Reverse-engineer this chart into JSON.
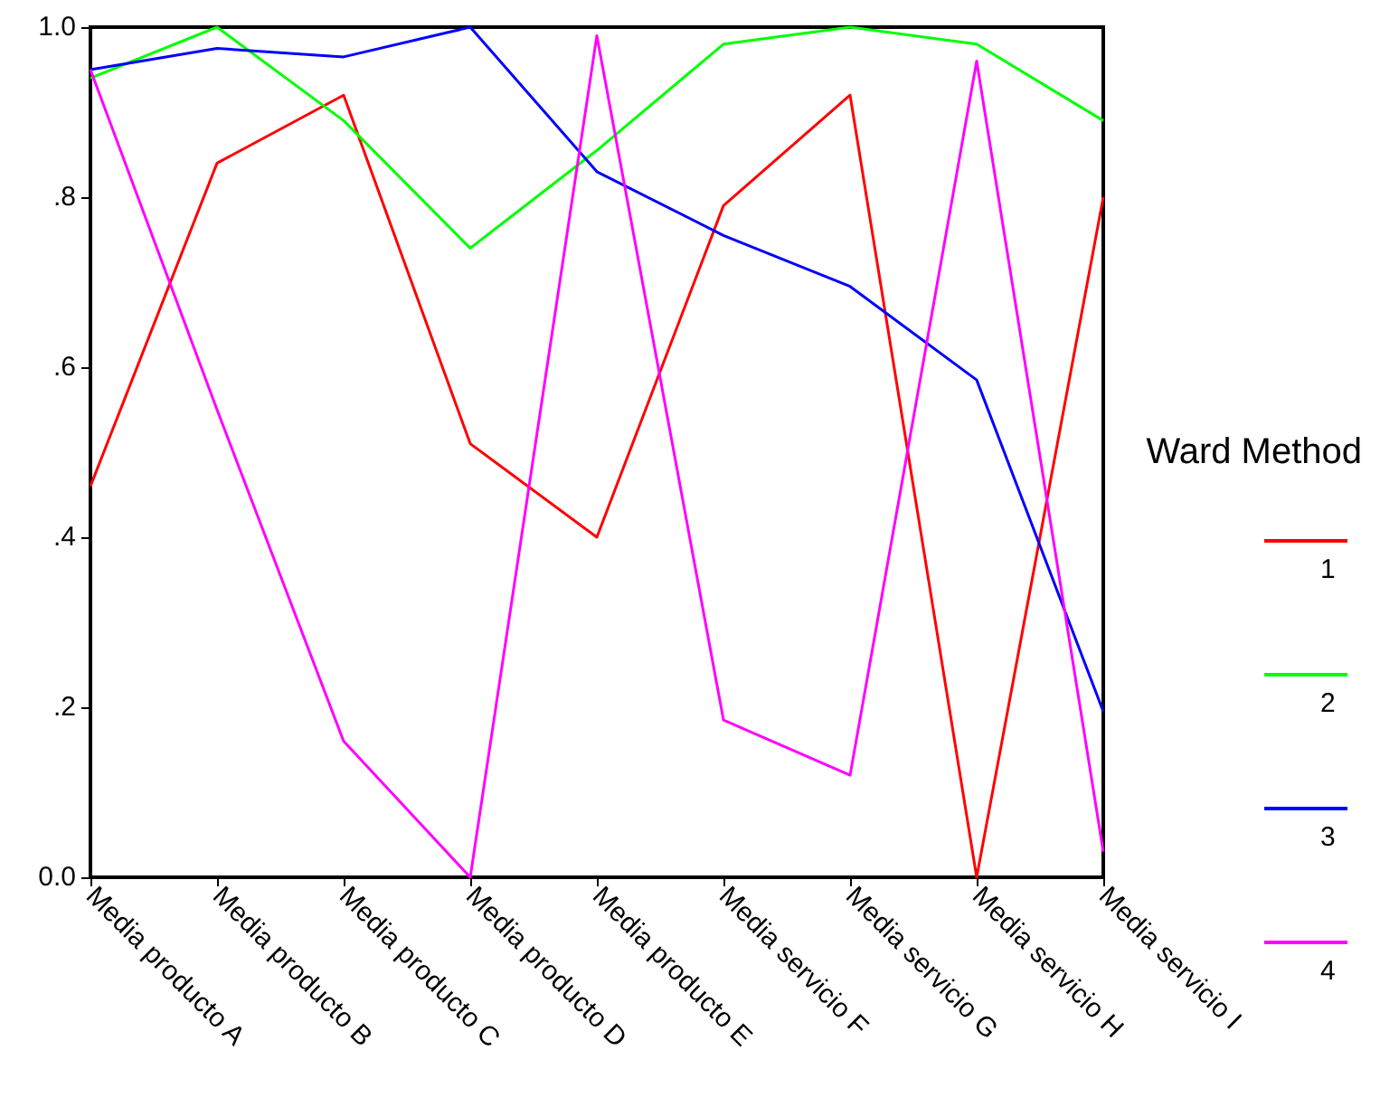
{
  "chart_data": {
    "type": "line",
    "legend_title": "Ward Method",
    "categories": [
      "Media producto A",
      "Media producto B",
      "Media producto C",
      "Media producto D",
      "Media producto E",
      "Media servicio F",
      "Media servicio G",
      "Media servicio H",
      "Media servicio I"
    ],
    "series": [
      {
        "name": "1",
        "color": "#ff0000",
        "values": [
          0.46,
          0.84,
          0.92,
          0.51,
          0.4,
          0.79,
          0.92,
          0.0,
          0.8
        ]
      },
      {
        "name": "2",
        "color": "#00ff00",
        "values": [
          0.94,
          1.0,
          0.89,
          0.74,
          0.855,
          0.98,
          1.0,
          0.98,
          0.89
        ]
      },
      {
        "name": "3",
        "color": "#0000ff",
        "values": [
          0.95,
          0.975,
          0.965,
          1.0,
          0.83,
          0.755,
          0.695,
          0.585,
          0.195
        ]
      },
      {
        "name": "4",
        "color": "#ff00ff",
        "values": [
          0.95,
          0.55,
          0.16,
          0.0,
          0.99,
          0.185,
          0.12,
          0.96,
          0.03
        ]
      }
    ],
    "ylim": [
      0,
      1
    ],
    "yticks": [
      {
        "value": 0,
        "label": "0.0"
      },
      {
        "value": 0.2,
        "label": ".2"
      },
      {
        "value": 0.4,
        "label": ".4"
      },
      {
        "value": 0.6,
        "label": ".6"
      },
      {
        "value": 0.8,
        "label": ".8"
      },
      {
        "value": 1,
        "label": "1.0"
      }
    ],
    "grid": false,
    "legend": "right",
    "marker": "none",
    "line_style": "solid"
  }
}
